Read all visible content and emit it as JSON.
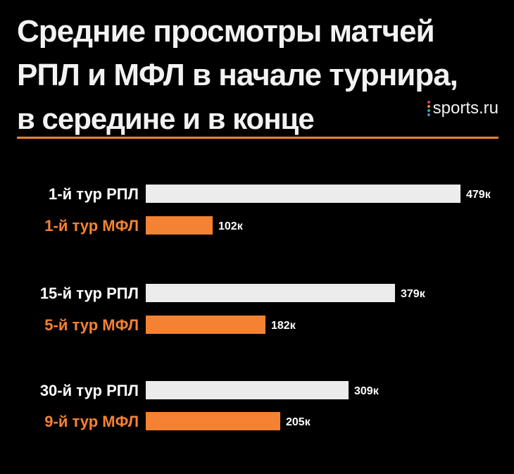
{
  "title": {
    "line1": "Средние просмотры матчей",
    "line2": "РПЛ и МФЛ в начале турнира,",
    "line3": "в середине и в конце"
  },
  "logo": {
    "text": "sports.ru",
    "dot_colors": [
      "#e23b6b",
      "#f08a24",
      "#2bb673",
      "#3b8fe2"
    ]
  },
  "colors": {
    "rpl": "#ececec",
    "mfl": "#f58232",
    "rule": "#f58232",
    "background": "#000000",
    "rpl_label": "#ffffff",
    "mfl_label": "#f58232"
  },
  "chart_data": {
    "type": "bar",
    "orientation": "horizontal",
    "unit_suffix": "к",
    "xlim": [
      0,
      479
    ],
    "bars": [
      {
        "label": "1-й тур РПЛ",
        "value": 479,
        "value_label": "479к",
        "league": "rpl"
      },
      {
        "label": "1-й тур МФЛ",
        "value": 102,
        "value_label": "102к",
        "league": "mfl"
      },
      {
        "label": "15-й тур РПЛ",
        "value": 379,
        "value_label": "379к",
        "league": "rpl"
      },
      {
        "label": "5-й тур МФЛ",
        "value": 182,
        "value_label": "182к",
        "league": "mfl"
      },
      {
        "label": "30-й тур РПЛ",
        "value": 309,
        "value_label": "309к",
        "league": "rpl"
      },
      {
        "label": "9-й тур МФЛ",
        "value": 205,
        "value_label": "205к",
        "league": "mfl"
      }
    ],
    "groups": [
      [
        0,
        1
      ],
      [
        2,
        3
      ],
      [
        4,
        5
      ]
    ],
    "grid": false,
    "legend": "none"
  }
}
